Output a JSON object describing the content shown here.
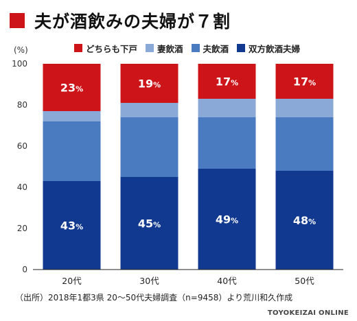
{
  "title": "夫が酒飲みの夫婦が７割",
  "unit": "(%)",
  "source": "（出所）2018年1都3県 20～50代夫婦調査（n=9458）より荒川和久作成",
  "brand": "TOYOKEIZAI ONLINE",
  "colors": {
    "title_mark": "#cc1419",
    "neither": "#cc1419",
    "wife": "#8aa9d6",
    "husband": "#4a7bc0",
    "both": "#11398f"
  },
  "chart_data": {
    "type": "bar",
    "stacked": true,
    "categories": [
      "20代",
      "30代",
      "40代",
      "50代"
    ],
    "ylim": [
      0,
      100
    ],
    "yticks": [
      0,
      20,
      40,
      60,
      80,
      100
    ],
    "grid": false,
    "legend_position": "top",
    "series": [
      {
        "name": "双方飲酒夫婦",
        "color": "#11398f",
        "values": [
          43,
          45,
          49,
          48
        ],
        "labels": [
          "43%",
          "45%",
          "49%",
          "48%"
        ]
      },
      {
        "name": "夫飲酒",
        "color": "#4a7bc0",
        "values": [
          29,
          29,
          25,
          26
        ],
        "labels": null
      },
      {
        "name": "妻飲酒",
        "color": "#8aa9d6",
        "values": [
          5,
          7,
          9,
          9
        ],
        "labels": null
      },
      {
        "name": "どちらも下戸",
        "color": "#cc1419",
        "values": [
          23,
          19,
          17,
          17
        ],
        "labels": [
          "23%",
          "19%",
          "17%",
          "17%"
        ]
      }
    ],
    "legend_order": [
      "どちらも下戸",
      "妻飲酒",
      "夫飲酒",
      "双方飲酒夫婦"
    ]
  }
}
